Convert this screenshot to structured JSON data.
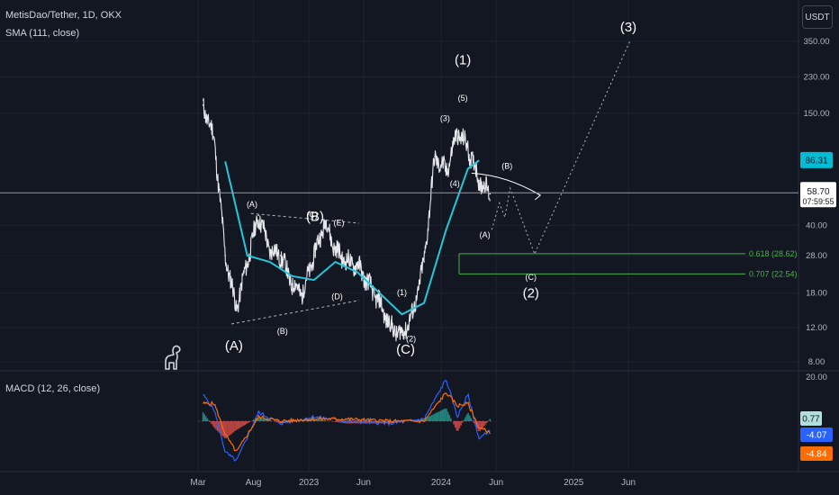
{
  "header": {
    "symbol_title": "MetisDao/Tether, 1D, OKX",
    "sma_label": "SMA (111, close)",
    "currency": "USDT",
    "macd_label": "MACD (12, 26, close)"
  },
  "colors": {
    "background": "#131722",
    "candles": "#e6e8ee",
    "sma": "#26c6da",
    "macd_line": "#2962ff",
    "signal_line": "#ff6d00",
    "hist_pos": "#26a69a",
    "hist_neg": "#ef5350",
    "fib": "#4caf50",
    "grid": "#1e222d"
  },
  "chart_data": [
    {
      "type": "line",
      "title": "MetisDao/Tether, 1D, OKX",
      "y_scale": "log",
      "ylim": [
        7.5,
        420
      ],
      "y_ticks": [
        "350.00",
        "230.00",
        "150.00",
        "40.00",
        "28.00",
        "18.00",
        "12.00",
        "8.00"
      ],
      "x_ticks": [
        "Mar",
        "Aug",
        "2023",
        "Jun",
        "2024",
        "Jun",
        "2025",
        "Jun"
      ],
      "series": [
        {
          "name": "price",
          "x": [
            "2022-03",
            "2022-04",
            "2022-05",
            "2022-06",
            "2022-07",
            "2022-08",
            "2022-09",
            "2022-10",
            "2022-11",
            "2022-12",
            "2023-01",
            "2023-02",
            "2023-03",
            "2023-04",
            "2023-05",
            "2023-06",
            "2023-07",
            "2023-08",
            "2023-09",
            "2023-10",
            "2023-11",
            "2023-12",
            "2024-01",
            "2024-02",
            "2024-03",
            "2024-04",
            "2024-05"
          ],
          "values": [
            165,
            110,
            28,
            15,
            26,
            45,
            30,
            28,
            20,
            18,
            28,
            42,
            30,
            26,
            25,
            20,
            16,
            12,
            11,
            14,
            26,
            90,
            75,
            120,
            100,
            68,
            58
          ]
        },
        {
          "name": "SMA (111, close)",
          "x": [
            "2022-05",
            "2022-07",
            "2022-09",
            "2022-11",
            "2023-01",
            "2023-03",
            "2023-05",
            "2023-07",
            "2023-09",
            "2023-11",
            "2024-01",
            "2024-03",
            "2024-04"
          ],
          "values": [
            85,
            28,
            26,
            22,
            21,
            26,
            23,
            18,
            14,
            16,
            38,
            78,
            86
          ]
        }
      ],
      "price_labels": {
        "sma": "86.31",
        "last": "58.70",
        "countdown": "07:59:55"
      },
      "fib_levels": [
        {
          "label": "0.618 (28.62)",
          "value": 28.62
        },
        {
          "label": "0.707 (22.54)",
          "value": 22.54
        }
      ],
      "annotations": [
        "(A)",
        "(A)",
        "(B)",
        "(C)",
        "(B)",
        "(D)",
        "(E)",
        "(C)",
        "(1)",
        "(2)",
        "(3)",
        "(5)",
        "(4)",
        "(1)",
        "(B)",
        "(A)",
        "(C)",
        "(2)",
        "(3)"
      ]
    },
    {
      "type": "line",
      "title": "MACD (12, 26, close)",
      "ylim": [
        -22,
        22
      ],
      "y_ticks": [
        "20.00"
      ],
      "series": [
        {
          "name": "MACD",
          "x": [
            "2022-03",
            "2022-04",
            "2022-05",
            "2022-06",
            "2022-08",
            "2022-10",
            "2023-01",
            "2023-04",
            "2023-08",
            "2023-11",
            "2024-01",
            "2024-02",
            "2024-03",
            "2024-04",
            "2024-05"
          ],
          "values": [
            12,
            5,
            -14,
            -18,
            4,
            -1,
            2,
            0,
            -1,
            1,
            19,
            2,
            12,
            -8,
            -4
          ]
        },
        {
          "name": "Signal",
          "x": [
            "2022-03",
            "2022-04",
            "2022-05",
            "2022-06",
            "2022-08",
            "2022-10",
            "2023-01",
            "2023-04",
            "2023-08",
            "2023-11",
            "2024-01",
            "2024-02",
            "2024-03",
            "2024-04",
            "2024-05"
          ],
          "values": [
            8,
            8,
            -6,
            -14,
            2,
            0,
            1,
            1,
            0,
            0,
            13,
            7,
            8,
            -3,
            -5
          ]
        }
      ],
      "value_labels": {
        "histogram": "0.77",
        "macd": "-4.07",
        "signal": "-4.84"
      }
    }
  ]
}
